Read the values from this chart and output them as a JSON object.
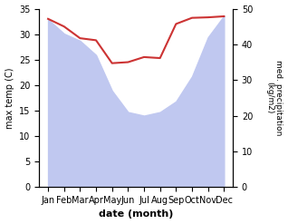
{
  "months": [
    "Jan",
    "Feb",
    "Mar",
    "Apr",
    "May",
    "Jun",
    "Jul",
    "Aug",
    "Sep",
    "Oct",
    "Nov",
    "Dec"
  ],
  "temperature": [
    33.0,
    31.5,
    29.2,
    28.8,
    24.3,
    24.5,
    25.5,
    25.3,
    32.0,
    33.2,
    33.3,
    33.5
  ],
  "precipitation": [
    47,
    43,
    41,
    37,
    27,
    21,
    20,
    21,
    24,
    31,
    42,
    48
  ],
  "temp_color": "#cc3333",
  "precip_fill_color": "#c0c8f0",
  "temp_ylim": [
    0,
    35
  ],
  "precip_ylim": [
    0,
    50
  ],
  "temp_yticks": [
    0,
    5,
    10,
    15,
    20,
    25,
    30,
    35
  ],
  "precip_yticks": [
    0,
    10,
    20,
    30,
    40,
    50
  ],
  "xlabel": "date (month)",
  "ylabel_left": "max temp (C)",
  "ylabel_right": "med. precipitation\n(kg/m2)",
  "figsize": [
    3.18,
    2.47
  ],
  "dpi": 100
}
